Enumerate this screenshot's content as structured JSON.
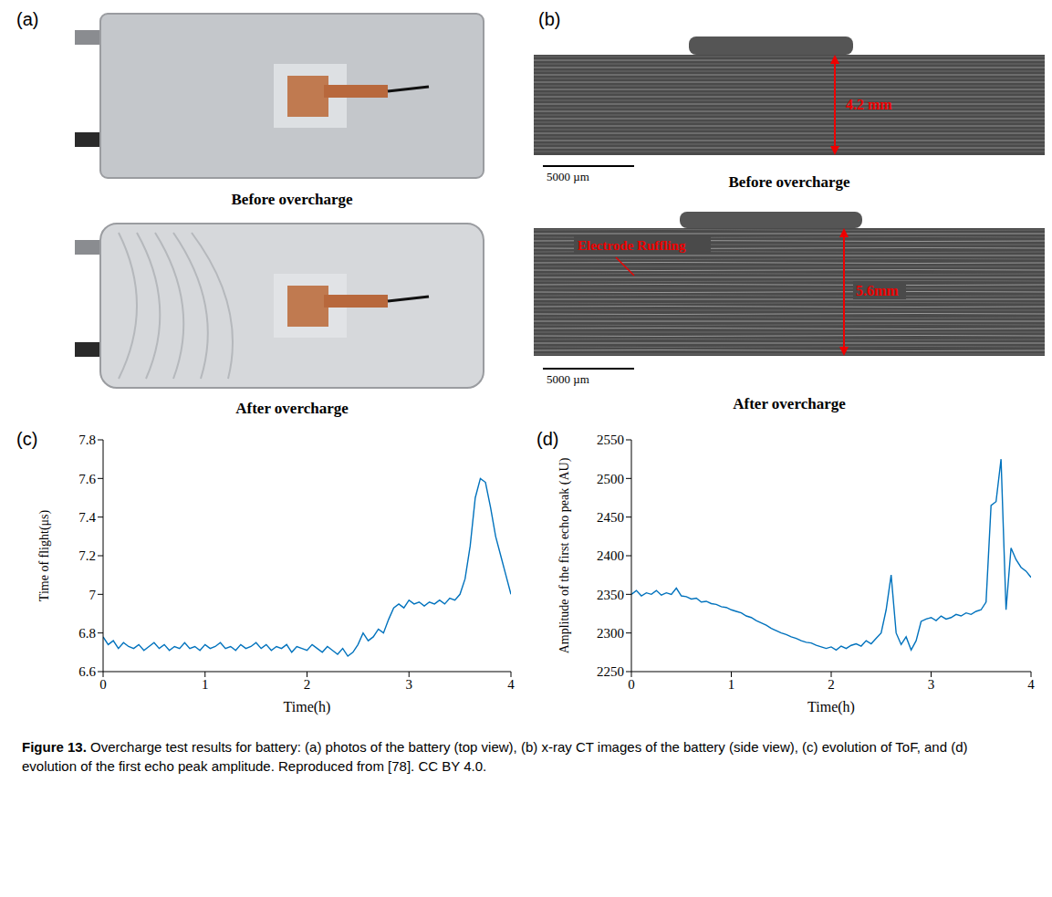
{
  "figure": {
    "caption_label": "Figure 13.",
    "caption": "Overcharge test results for battery: (a) photos of the battery (top view), (b) x-ray CT images of the battery (side view), (c) evolution of ToF, and (d) evolution of the first echo peak amplitude. Reproduced from [78]. CC BY 4.0.",
    "panel_a": {
      "panel": "(a)",
      "top_label": "Before overcharge",
      "bottom_label": "After overcharge"
    },
    "panel_b": {
      "panel": "(b)",
      "top_label": "Before overcharge",
      "bottom_label": "After overcharge",
      "top_thickness": "4.2 mm",
      "bottom_thickness": "5.6mm",
      "annotation": "Electrode Ruffling",
      "scale_bar": "5000 µm"
    }
  },
  "chart_data": [
    {
      "panel": "(c)",
      "type": "line",
      "x_label": "Time(h)",
      "y_label": "Time of flight(μs)",
      "xlim": [
        0,
        4
      ],
      "xticks": [
        0,
        1,
        2,
        3,
        4
      ],
      "ylim": [
        6.6,
        7.8
      ],
      "yticks": [
        6.6,
        6.8,
        7,
        7.2,
        7.4,
        7.6,
        7.8
      ],
      "grid": false,
      "color": "#0072bd",
      "x": [
        0,
        0.05,
        0.1,
        0.15,
        0.2,
        0.25,
        0.3,
        0.35,
        0.4,
        0.45,
        0.5,
        0.55,
        0.6,
        0.65,
        0.7,
        0.75,
        0.8,
        0.85,
        0.9,
        0.95,
        1,
        1.05,
        1.1,
        1.15,
        1.2,
        1.25,
        1.3,
        1.35,
        1.4,
        1.45,
        1.5,
        1.55,
        1.6,
        1.65,
        1.7,
        1.75,
        1.8,
        1.85,
        1.9,
        1.95,
        2,
        2.05,
        2.1,
        2.15,
        2.2,
        2.25,
        2.3,
        2.35,
        2.4,
        2.45,
        2.5,
        2.55,
        2.6,
        2.65,
        2.7,
        2.75,
        2.8,
        2.85,
        2.9,
        2.95,
        3,
        3.05,
        3.1,
        3.15,
        3.2,
        3.25,
        3.3,
        3.35,
        3.4,
        3.45,
        3.5,
        3.55,
        3.6,
        3.65,
        3.7,
        3.75,
        3.8,
        3.85,
        3.9,
        3.95,
        4
      ],
      "values": [
        6.78,
        6.74,
        6.76,
        6.72,
        6.75,
        6.73,
        6.72,
        6.74,
        6.71,
        6.73,
        6.75,
        6.72,
        6.74,
        6.71,
        6.73,
        6.72,
        6.75,
        6.72,
        6.73,
        6.71,
        6.74,
        6.72,
        6.73,
        6.75,
        6.72,
        6.73,
        6.71,
        6.74,
        6.72,
        6.73,
        6.75,
        6.72,
        6.74,
        6.71,
        6.73,
        6.72,
        6.74,
        6.7,
        6.73,
        6.72,
        6.71,
        6.74,
        6.72,
        6.7,
        6.73,
        6.71,
        6.69,
        6.72,
        6.68,
        6.7,
        6.74,
        6.8,
        6.76,
        6.78,
        6.82,
        6.8,
        6.87,
        6.93,
        6.95,
        6.93,
        6.97,
        6.95,
        6.96,
        6.94,
        6.96,
        6.95,
        6.97,
        6.95,
        6.98,
        6.97,
        7.0,
        7.08,
        7.25,
        7.5,
        7.6,
        7.58,
        7.45,
        7.3,
        7.2,
        7.1,
        7.0
      ]
    },
    {
      "panel": "(d)",
      "type": "line",
      "x_label": "Time(h)",
      "y_label": "Amplitude of the first echo peak (AU)",
      "xlim": [
        0,
        4
      ],
      "xticks": [
        0,
        1,
        2,
        3,
        4
      ],
      "ylim": [
        2250,
        2550
      ],
      "yticks": [
        2250,
        2300,
        2350,
        2400,
        2450,
        2500,
        2550
      ],
      "grid": false,
      "color": "#0072bd",
      "x": [
        0,
        0.05,
        0.1,
        0.15,
        0.2,
        0.25,
        0.3,
        0.35,
        0.4,
        0.45,
        0.5,
        0.55,
        0.6,
        0.65,
        0.7,
        0.75,
        0.8,
        0.85,
        0.9,
        0.95,
        1,
        1.05,
        1.1,
        1.15,
        1.2,
        1.25,
        1.3,
        1.35,
        1.4,
        1.45,
        1.5,
        1.55,
        1.6,
        1.65,
        1.7,
        1.75,
        1.8,
        1.85,
        1.9,
        1.95,
        2,
        2.05,
        2.1,
        2.15,
        2.2,
        2.25,
        2.3,
        2.35,
        2.4,
        2.45,
        2.5,
        2.55,
        2.6,
        2.65,
        2.7,
        2.75,
        2.8,
        2.85,
        2.9,
        2.95,
        3,
        3.05,
        3.1,
        3.15,
        3.2,
        3.25,
        3.3,
        3.35,
        3.4,
        3.45,
        3.5,
        3.55,
        3.6,
        3.65,
        3.7,
        3.75,
        3.8,
        3.85,
        3.9,
        3.95,
        4
      ],
      "values": [
        2350,
        2355,
        2348,
        2352,
        2350,
        2355,
        2349,
        2352,
        2350,
        2358,
        2348,
        2347,
        2344,
        2345,
        2340,
        2341,
        2338,
        2337,
        2334,
        2333,
        2330,
        2328,
        2326,
        2322,
        2320,
        2316,
        2313,
        2310,
        2306,
        2303,
        2300,
        2298,
        2295,
        2293,
        2290,
        2288,
        2287,
        2284,
        2282,
        2280,
        2282,
        2278,
        2283,
        2280,
        2284,
        2286,
        2283,
        2290,
        2286,
        2293,
        2300,
        2330,
        2375,
        2300,
        2285,
        2295,
        2278,
        2290,
        2315,
        2318,
        2320,
        2316,
        2322,
        2318,
        2320,
        2324,
        2322,
        2326,
        2324,
        2328,
        2330,
        2340,
        2465,
        2470,
        2525,
        2330,
        2410,
        2395,
        2385,
        2380,
        2372
      ]
    }
  ]
}
